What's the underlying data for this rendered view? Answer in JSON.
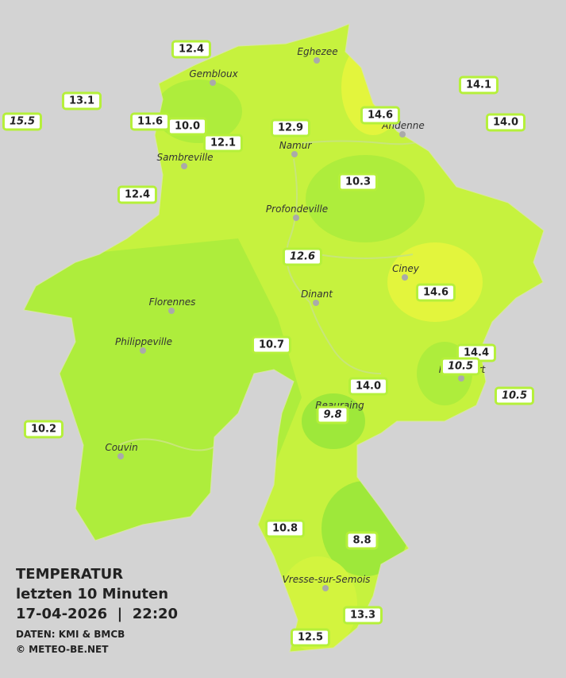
{
  "title": "TEMPERATUR",
  "subtitle": "letzten 10 Minuten",
  "timestamp": "17-04-2026  |  22:20",
  "source": "DATEN: KMI & BMCB",
  "copyright": "© METEO-BE.NET",
  "cities": [
    "Eghezee",
    "Gembloux",
    "Andenne",
    "Namur",
    "Sambreville",
    "Profondeville",
    "Ciney",
    "Dinant",
    "Florennes",
    "Philippeville",
    "Rochefort",
    "Beauraing",
    "Couvin",
    "Vresse-sur-Semois"
  ],
  "stations": [
    "12.4",
    "13.1",
    "15.5",
    "11.6",
    "10.0",
    "12.1",
    "12.9",
    "14.6",
    "14.1",
    "14.0",
    "10.3",
    "12.4",
    "12.6",
    "14.6",
    "10.7",
    "14.4",
    "10.5",
    "10.5",
    "14.0",
    "9.8",
    "10.2",
    "10.8",
    "8.8",
    "13.3",
    "12.5"
  ]
}
